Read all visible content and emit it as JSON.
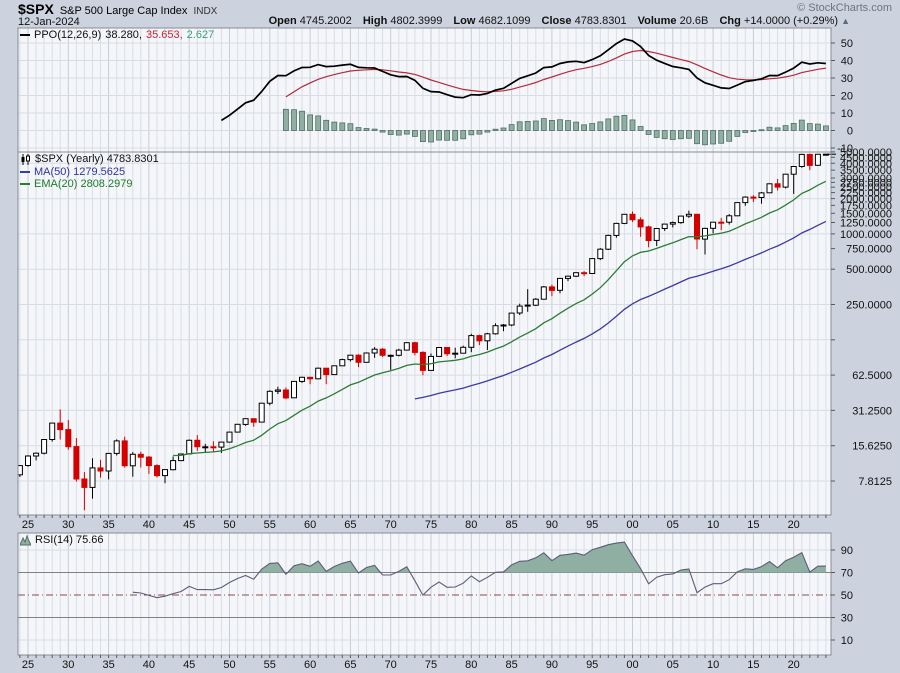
{
  "header": {
    "symbol": "$SPX",
    "index_name": "S&P 500 Large Cap Index",
    "exchange": "INDX",
    "date": "12-Jan-2024",
    "copyright": "© StockCharts.com",
    "quote": [
      {
        "label": "Open",
        "value": "4745.2002"
      },
      {
        "label": "High",
        "value": "4802.3999"
      },
      {
        "label": "Low",
        "value": "4682.1099"
      },
      {
        "label": "Close",
        "value": "4783.8301"
      },
      {
        "label": "Volume",
        "value": "20.6B"
      },
      {
        "label": "Chg",
        "value": "+14.0000 (+0.29%)"
      }
    ],
    "change_arrow": "▲"
  },
  "legends": {
    "ppo": {
      "label": "PPO(12,26,9)",
      "main": "38.280,",
      "signal": "35.653,",
      "hist": "2.627"
    },
    "price": {
      "symbol": "$SPX (Yearly) 4783.8301",
      "ma": "MA(50) 1279.5625",
      "ema": "EMA(20) 2808.2979"
    },
    "rsi": {
      "label": "RSI(14) 75.66"
    }
  },
  "axes": {
    "ppo_y": [
      50,
      40,
      30,
      20,
      10,
      0,
      -10
    ],
    "main_y_labels": [
      5000,
      4500,
      4000,
      3500,
      3000,
      2750,
      2500,
      2250,
      2000,
      1750,
      1500,
      1250,
      1000,
      750,
      500,
      250,
      62.5,
      31.25,
      15.625,
      7.8125
    ],
    "main_gridlines": [
      7.8125,
      15.625,
      31.25,
      62.5,
      125,
      250,
      500,
      1000,
      2000,
      4000
    ],
    "rsi_y": [
      90,
      70,
      50,
      30,
      10
    ],
    "x_years": [
      1925,
      1930,
      1935,
      1940,
      1945,
      1950,
      1955,
      1960,
      1965,
      1970,
      1975,
      1980,
      1985,
      1990,
      1995,
      2000,
      2005,
      2010,
      2015,
      2020
    ],
    "x_labels": [
      "25",
      "30",
      "35",
      "40",
      "45",
      "50",
      "55",
      "60",
      "65",
      "70",
      "75",
      "80",
      "85",
      "90",
      "95",
      "00",
      "05",
      "10",
      "15",
      "20"
    ]
  },
  "colors": {
    "page_bg": "#ccd3de",
    "panel_bg": "#f5f6f9",
    "grid_minor": "#dadee7",
    "grid_major": "#c6ccd8",
    "grid_h": "#d8dce4",
    "border": "#878c96",
    "axis_text": "#111111",
    "tick": "#555c68",
    "candle_up_fill": "#ffffff",
    "candle_outline": "#000000",
    "candle_down": "#d40000",
    "ma50": "#3a3aa8",
    "ema20": "#2c7c36",
    "ppo_line": "#000000",
    "ppo_signal": "#b52a3a",
    "hist_fill": "#8fafa3",
    "hist_stroke": "#4f7064",
    "rsi_line": "#5c5c7a",
    "rsi_fill": "#8fafa3",
    "rsi_band": "#808080",
    "rsi_mid": "#8a4a4a",
    "legend_signal": "#cc2233",
    "legend_hist": "#3aa07a",
    "legend_ma": "#3333a0",
    "legend_ema": "#1e7b2e"
  },
  "chart_data": {
    "type": "candlestick",
    "timeframe": "yearly",
    "symbol": "$SPX",
    "log_scale": true,
    "x_range_years": [
      1924,
      2024
    ],
    "overlays": [
      {
        "type": "sma",
        "period": 50,
        "last_value": 1279.5625
      },
      {
        "type": "ema",
        "period": 20,
        "last_value": 2808.2979
      }
    ],
    "indicator_panels": [
      {
        "type": "ppo",
        "params": [
          12,
          26,
          9
        ],
        "last_values": [
          38.28,
          35.653,
          2.627
        ]
      },
      {
        "type": "rsi",
        "period": 14,
        "last_value": 75.66,
        "overbought": 70,
        "oversold": 30,
        "midline": 50
      }
    ],
    "candles": [
      [
        1924,
        8.83,
        10.65,
        8.45,
        10.58
      ],
      [
        1925,
        10.58,
        12.95,
        10.35,
        12.76
      ],
      [
        1926,
        12.76,
        13.71,
        11.72,
        13.49
      ],
      [
        1927,
        13.49,
        17.71,
        13.18,
        17.66
      ],
      [
        1928,
        17.66,
        24.5,
        16.95,
        24.35
      ],
      [
        1929,
        24.35,
        31.92,
        17.66,
        21.45
      ],
      [
        1930,
        21.45,
        25.92,
        14.44,
        15.34
      ],
      [
        1931,
        15.34,
        18.17,
        7.72,
        8.12
      ],
      [
        1932,
        8.12,
        9.31,
        4.4,
        6.89
      ],
      [
        1933,
        6.89,
        12.2,
        5.53,
        10.1
      ],
      [
        1934,
        10.1,
        11.82,
        8.36,
        9.5
      ],
      [
        1935,
        9.5,
        13.46,
        8.06,
        13.43
      ],
      [
        1936,
        13.43,
        17.69,
        12.9,
        17.18
      ],
      [
        1937,
        17.18,
        18.68,
        10.17,
        10.55
      ],
      [
        1938,
        10.55,
        13.79,
        8.5,
        13.21
      ],
      [
        1939,
        13.21,
        13.9,
        10.18,
        12.49
      ],
      [
        1940,
        12.49,
        12.77,
        8.99,
        10.58
      ],
      [
        1941,
        10.58,
        10.86,
        8.37,
        8.69
      ],
      [
        1942,
        8.69,
        9.77,
        7.47,
        9.77
      ],
      [
        1943,
        9.77,
        12.64,
        9.62,
        11.67
      ],
      [
        1944,
        11.67,
        13.29,
        11.56,
        13.28
      ],
      [
        1945,
        13.28,
        17.68,
        13.21,
        17.36
      ],
      [
        1946,
        17.36,
        19.25,
        14.12,
        15.3
      ],
      [
        1947,
        15.3,
        16.2,
        13.71,
        15.3
      ],
      [
        1948,
        15.3,
        17.06,
        13.84,
        15.2
      ],
      [
        1949,
        15.2,
        16.79,
        13.55,
        16.76
      ],
      [
        1950,
        16.76,
        20.43,
        16.65,
        20.41
      ],
      [
        1951,
        20.41,
        23.85,
        20.3,
        23.77
      ],
      [
        1952,
        23.77,
        26.59,
        23.09,
        26.57
      ],
      [
        1953,
        26.57,
        26.66,
        22.71,
        24.81
      ],
      [
        1954,
        24.81,
        35.98,
        24.8,
        35.98
      ],
      [
        1955,
        35.98,
        46.41,
        34.58,
        45.48
      ],
      [
        1956,
        45.48,
        49.74,
        43.11,
        46.67
      ],
      [
        1957,
        46.67,
        49.13,
        38.98,
        39.99
      ],
      [
        1958,
        39.99,
        55.21,
        39.9,
        55.21
      ],
      [
        1959,
        55.21,
        60.71,
        53.58,
        59.89
      ],
      [
        1960,
        59.89,
        60.39,
        52.3,
        58.11
      ],
      [
        1961,
        58.11,
        72.64,
        57.57,
        71.55
      ],
      [
        1962,
        71.55,
        71.6,
        52.32,
        63.1
      ],
      [
        1963,
        63.1,
        75.02,
        62.69,
        75.02
      ],
      [
        1964,
        75.02,
        86.28,
        74.9,
        84.75
      ],
      [
        1965,
        84.75,
        92.63,
        81.6,
        92.43
      ],
      [
        1966,
        92.43,
        94.06,
        73.2,
        80.33
      ],
      [
        1967,
        80.33,
        97.59,
        80.3,
        96.47
      ],
      [
        1968,
        96.47,
        108.37,
        87.72,
        103.86
      ],
      [
        1969,
        103.86,
        106.16,
        89.2,
        92.06
      ],
      [
        1970,
        92.06,
        93.46,
        69.29,
        92.15
      ],
      [
        1971,
        92.15,
        104.77,
        90.16,
        102.09
      ],
      [
        1972,
        102.09,
        119.12,
        101.67,
        118.05
      ],
      [
        1973,
        118.05,
        120.24,
        92.16,
        97.55
      ],
      [
        1974,
        97.55,
        99.8,
        62.28,
        68.56
      ],
      [
        1975,
        68.56,
        95.61,
        68.56,
        90.19
      ],
      [
        1976,
        90.19,
        107.83,
        90.0,
        107.46
      ],
      [
        1977,
        107.46,
        107.97,
        90.71,
        95.1
      ],
      [
        1978,
        95.1,
        106.99,
        86.9,
        96.11
      ],
      [
        1979,
        96.11,
        111.27,
        96.0,
        107.94
      ],
      [
        1980,
        107.94,
        140.52,
        98.22,
        135.76
      ],
      [
        1981,
        135.76,
        138.12,
        112.77,
        122.55
      ],
      [
        1982,
        122.55,
        143.02,
        102.42,
        140.64
      ],
      [
        1983,
        140.64,
        172.65,
        138.34,
        164.93
      ],
      [
        1984,
        164.93,
        170.41,
        147.82,
        167.24
      ],
      [
        1985,
        167.24,
        212.02,
        163.36,
        211.28
      ],
      [
        1986,
        211.28,
        254.0,
        203.49,
        242.17
      ],
      [
        1987,
        242.17,
        337.89,
        216.46,
        247.08
      ],
      [
        1988,
        247.08,
        283.66,
        242.63,
        277.72
      ],
      [
        1989,
        277.72,
        359.8,
        275.31,
        353.4
      ],
      [
        1990,
        353.4,
        369.78,
        294.51,
        330.22
      ],
      [
        1991,
        330.22,
        417.09,
        311.49,
        417.09
      ],
      [
        1992,
        417.09,
        441.28,
        394.5,
        435.71
      ],
      [
        1993,
        435.71,
        470.94,
        429.01,
        466.45
      ],
      [
        1994,
        466.45,
        482.0,
        435.86,
        459.27
      ],
      [
        1995,
        459.27,
        621.69,
        457.2,
        615.93
      ],
      [
        1996,
        615.93,
        757.03,
        598.48,
        740.74
      ],
      [
        1997,
        740.74,
        983.79,
        729.55,
        970.43
      ],
      [
        1998,
        970.43,
        1244.93,
        927.69,
        1229.23
      ],
      [
        1999,
        1229.23,
        1473.1,
        1212.19,
        1469.25
      ],
      [
        2000,
        1469.25,
        1552.87,
        1264.74,
        1320.28
      ],
      [
        2001,
        1320.28,
        1383.37,
        944.75,
        1148.08
      ],
      [
        2002,
        1148.08,
        1176.97,
        768.63,
        879.82
      ],
      [
        2003,
        879.82,
        1112.56,
        788.9,
        1111.92
      ],
      [
        2004,
        1111.92,
        1217.33,
        1060.72,
        1211.92
      ],
      [
        2005,
        1211.92,
        1275.8,
        1136.15,
        1248.29
      ],
      [
        2006,
        1248.29,
        1431.81,
        1219.29,
        1418.3
      ],
      [
        2007,
        1418.3,
        1576.09,
        1370.6,
        1468.36
      ],
      [
        2008,
        1468.36,
        1471.77,
        741.02,
        903.25
      ],
      [
        2009,
        903.25,
        1130.38,
        666.79,
        1115.1
      ],
      [
        2010,
        1115.1,
        1262.6,
        1010.91,
        1257.64
      ],
      [
        2011,
        1257.64,
        1370.58,
        1074.77,
        1257.6
      ],
      [
        2012,
        1257.6,
        1474.51,
        1202.37,
        1426.19
      ],
      [
        2013,
        1426.19,
        1849.44,
        1426.19,
        1848.36
      ],
      [
        2014,
        1848.36,
        2093.55,
        1737.92,
        2058.9
      ],
      [
        2015,
        2058.9,
        2134.72,
        1867.01,
        2043.94
      ],
      [
        2016,
        2043.94,
        2277.53,
        1810.1,
        2238.83
      ],
      [
        2017,
        2238.83,
        2694.97,
        2238.83,
        2673.61
      ],
      [
        2018,
        2673.61,
        2940.91,
        2346.58,
        2506.85
      ],
      [
        2019,
        2506.85,
        3247.93,
        2443.96,
        3230.78
      ],
      [
        2020,
        3230.78,
        3760.2,
        2191.86,
        3756.07
      ],
      [
        2021,
        3756.07,
        4808.93,
        3662.71,
        4766.18
      ],
      [
        2022,
        4766.18,
        4818.62,
        3491.58,
        3839.5
      ],
      [
        2023,
        3839.5,
        4793.3,
        3794.33,
        4769.83
      ],
      [
        2024,
        4745.2,
        4802.4,
        4682.11,
        4783.83
      ]
    ]
  }
}
